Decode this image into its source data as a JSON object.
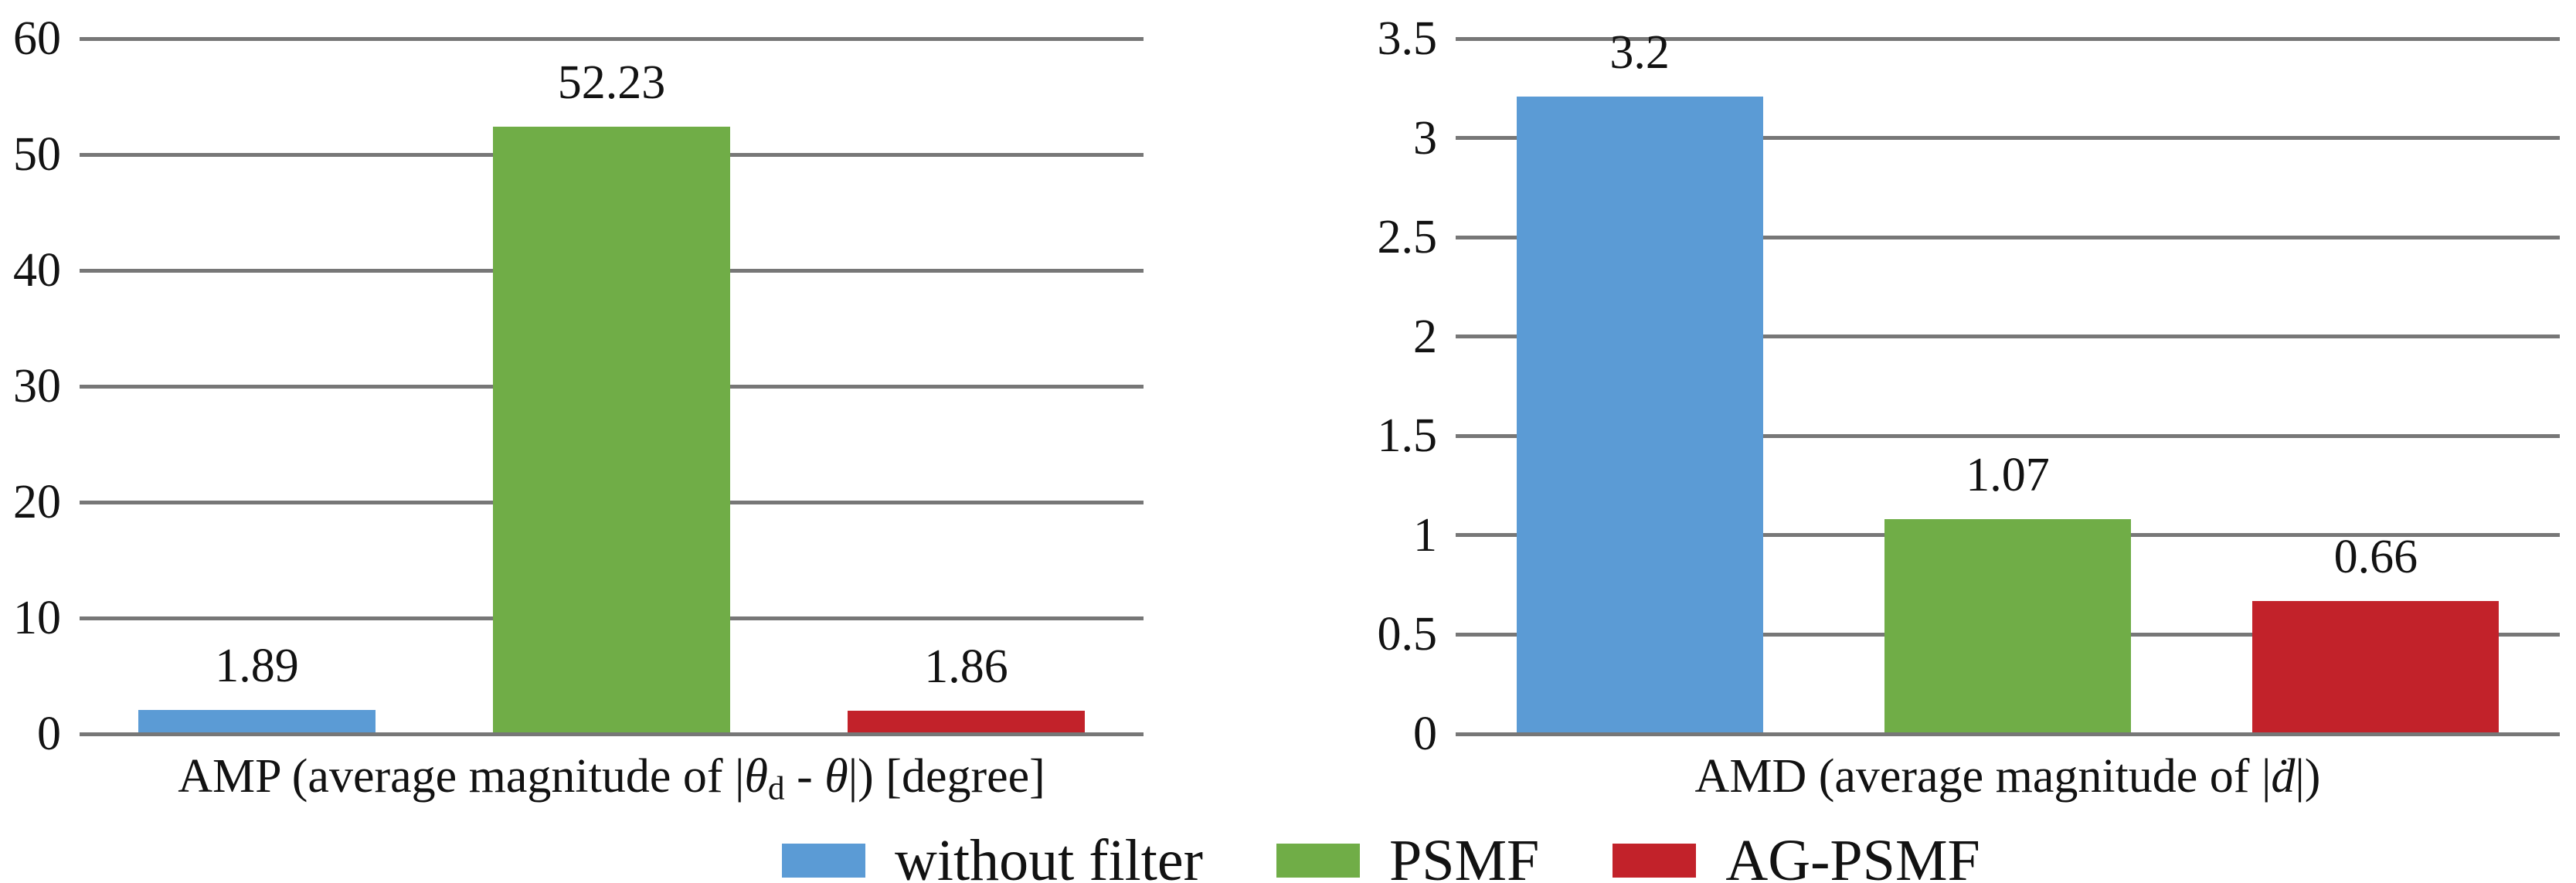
{
  "colors": {
    "background": "#ffffff",
    "gridline": "#777777",
    "text": "#121212",
    "series": {
      "without_filter": "#5B9BD5",
      "psmf": "#70AD47",
      "ag_psmf": "#C2222A"
    }
  },
  "legend": {
    "position": "bottom-center",
    "items": [
      {
        "label": "without filter",
        "color": "#5B9BD5"
      },
      {
        "label": "PSMF",
        "color": "#70AD47"
      },
      {
        "label": "AG-PSMF",
        "color": "#C2222A"
      }
    ]
  },
  "chart_data": [
    {
      "type": "bar",
      "title": "",
      "xlabel": "AMP (average magnitude of |θd - θ|) [degree]",
      "xlabel_parts": [
        {
          "text": "AMP (average magnitude of |"
        },
        {
          "text": "θ",
          "style": "italic"
        },
        {
          "text": "d",
          "style": "subscript"
        },
        {
          "text": " - "
        },
        {
          "text": "θ",
          "style": "italic"
        },
        {
          "text": "|) [degree]"
        }
      ],
      "ylabel": "",
      "categories": [
        "without filter",
        "PSMF",
        "AG-PSMF"
      ],
      "values": [
        1.89,
        52.23,
        1.86
      ],
      "value_labels": [
        "1.89",
        "52.23",
        "1.86"
      ],
      "ylim": [
        0,
        60
      ],
      "yticks": [
        0,
        10,
        20,
        30,
        40,
        50,
        60
      ],
      "ytick_labels": [
        "0",
        "10",
        "20",
        "30",
        "40",
        "50",
        "60"
      ],
      "grid": "horizontal",
      "legend_position": "none"
    },
    {
      "type": "bar",
      "title": "",
      "xlabel": "AMD (average magnitude of |ḋ|)",
      "xlabel_parts": [
        {
          "text": "AMD (average magnitude of |"
        },
        {
          "text": "ḋ",
          "style": "italic"
        },
        {
          "text": "|)"
        }
      ],
      "ylabel": "",
      "categories": [
        "without filter",
        "PSMF",
        "AG-PSMF"
      ],
      "values": [
        3.2,
        1.07,
        0.66
      ],
      "value_labels": [
        "3.2",
        "1.07",
        "0.66"
      ],
      "ylim": [
        0,
        3.5
      ],
      "yticks": [
        0,
        0.5,
        1,
        1.5,
        2,
        2.5,
        3,
        3.5
      ],
      "ytick_labels": [
        "0",
        "0.5",
        "1",
        "1.5",
        "2",
        "2.5",
        "3",
        "3.5"
      ],
      "grid": "horizontal",
      "legend_position": "none"
    }
  ]
}
